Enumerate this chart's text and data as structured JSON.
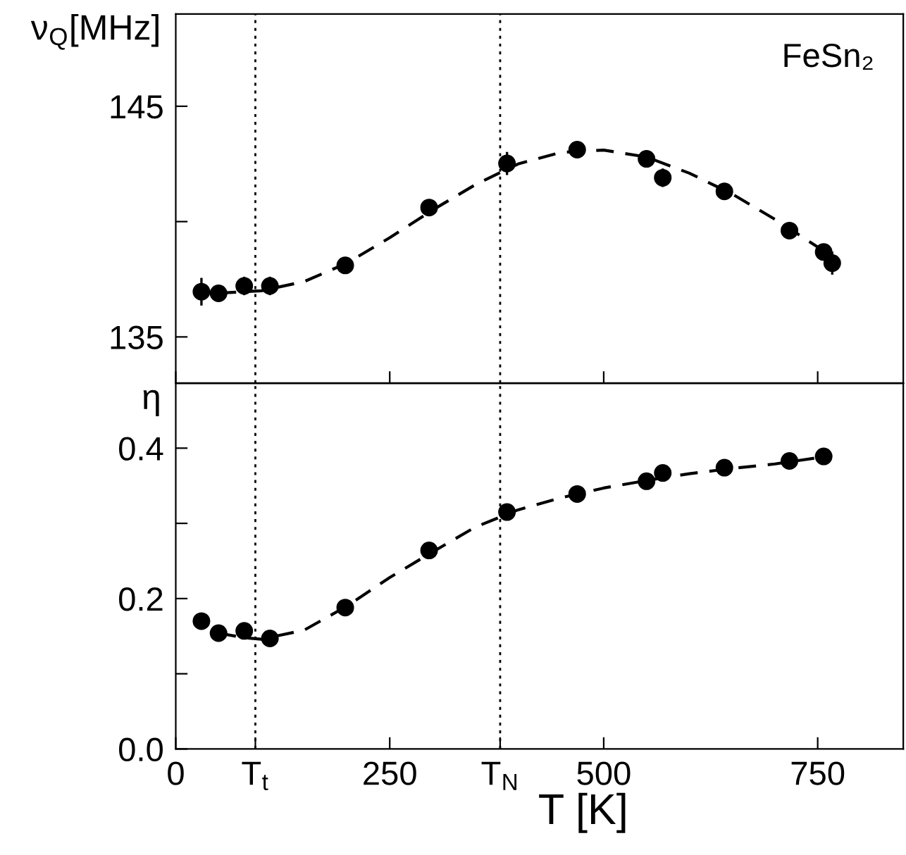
{
  "chart_data": [
    {
      "type": "scatter",
      "ylabel": "ν$_{Q}$[MHz]",
      "annotations": [
        "FeSn₂"
      ],
      "xlim": [
        0,
        850
      ],
      "ylim": [
        133,
        149
      ],
      "xticks": [
        0,
        250,
        500,
        750
      ],
      "yticks": [
        135,
        {
          "value": 140,
          "label": null
        },
        145
      ],
      "tick_labels": "y",
      "grid": false,
      "legend": false,
      "ref_lines": [
        {
          "axis": "x",
          "value": 93,
          "line_style": "dotted",
          "color": "#000000"
        },
        {
          "axis": "x",
          "value": 379,
          "line_style": "dotted",
          "color": "#000000"
        }
      ],
      "series": [
        {
          "marker": "circle",
          "color": "#000000",
          "x": [
            30,
            50,
            80,
            110,
            198,
            296,
            387,
            469,
            550,
            569,
            641,
            717,
            757,
            767
          ],
          "values": [
            136.96,
            136.89,
            137.21,
            137.21,
            138.1,
            140.61,
            142.52,
            143.12,
            142.72,
            141.9,
            141.31,
            139.61,
            138.68,
            138.2
          ],
          "errors": [
            0.6,
            null,
            0.4,
            0.4,
            null,
            null,
            0.5,
            null,
            0.3,
            0.4,
            null,
            null,
            0.3,
            0.5
          ]
        },
        {
          "type": "line",
          "color": "#000000",
          "line_style": "dashed",
          "x": [
            50,
            100,
            150,
            200,
            250,
            300,
            350,
            400,
            450,
            500,
            550,
            600,
            650,
            700,
            750,
            770
          ],
          "values": [
            136.9,
            137.0,
            137.4,
            138.2,
            139.3,
            140.5,
            141.6,
            142.5,
            143.0,
            143.1,
            142.8,
            142.1,
            141.2,
            140.1,
            138.9,
            138.3
          ]
        }
      ]
    },
    {
      "type": "scatter",
      "ylabel": "η",
      "xlabel": "T [K]",
      "xlim": [
        0,
        850
      ],
      "ylim": [
        0,
        0.486
      ],
      "xticks": [
        0,
        {
          "value": 93,
          "label": "T$_{t}$"
        },
        250,
        {
          "value": 379,
          "label": "T$_{N}$"
        },
        500,
        750
      ],
      "yticks": [
        {
          "value": 0,
          "label": "0.0"
        },
        {
          "value": 0.1,
          "label": null
        },
        0.2,
        {
          "value": 0.3,
          "label": null
        },
        0.4
      ],
      "grid": false,
      "legend": false,
      "ref_lines": [
        {
          "axis": "x",
          "value": 93,
          "line_style": "dotted",
          "color": "#000000"
        },
        {
          "axis": "x",
          "value": 379,
          "line_style": "dotted",
          "color": "#000000"
        }
      ],
      "series": [
        {
          "marker": "circle",
          "color": "#000000",
          "x": [
            30,
            50,
            80,
            110,
            198,
            296,
            387,
            469,
            550,
            569,
            641,
            717,
            757
          ],
          "values": [
            0.17,
            0.154,
            0.157,
            0.147,
            0.188,
            0.264,
            0.315,
            0.339,
            0.356,
            0.367,
            0.374,
            0.383,
            0.389
          ]
        },
        {
          "type": "line",
          "color": "#000000",
          "line_style": "dashed",
          "x": [
            50,
            80,
            100,
            150,
            200,
            250,
            300,
            350,
            400,
            450,
            500,
            550,
            600,
            650,
            700,
            760
          ],
          "values": [
            0.154,
            0.148,
            0.146,
            0.158,
            0.19,
            0.228,
            0.262,
            0.295,
            0.318,
            0.334,
            0.347,
            0.357,
            0.366,
            0.373,
            0.379,
            0.389
          ]
        }
      ]
    }
  ]
}
